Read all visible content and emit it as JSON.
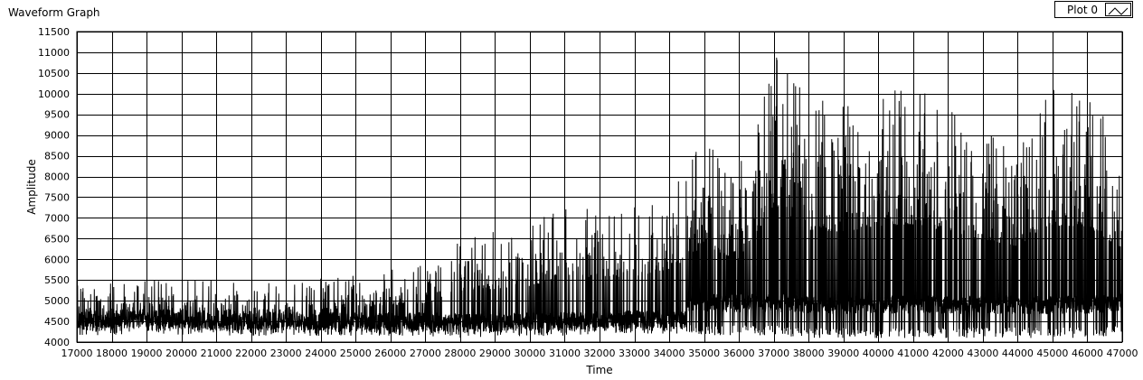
{
  "window": {
    "title": "Waveform Graph"
  },
  "legend": {
    "label": "Plot 0",
    "icon": "line-plot-icon"
  },
  "colors": {
    "background": "#ffffff",
    "grid": "#000000",
    "trace": "#000000"
  },
  "chart_data": {
    "type": "line",
    "title": "",
    "xlabel": "Time",
    "ylabel": "Amplitude",
    "xlim": [
      17000,
      47000
    ],
    "ylim": [
      4000,
      11500
    ],
    "x_ticks": [
      17000,
      18000,
      19000,
      20000,
      21000,
      22000,
      23000,
      24000,
      25000,
      26000,
      27000,
      28000,
      29000,
      30000,
      31000,
      32000,
      33000,
      34000,
      35000,
      36000,
      37000,
      38000,
      39000,
      40000,
      41000,
      42000,
      43000,
      44000,
      45000,
      46000,
      47000
    ],
    "y_ticks": [
      4000,
      4500,
      5000,
      5500,
      6000,
      6500,
      7000,
      7500,
      8000,
      8500,
      9000,
      9500,
      10000,
      10500,
      11000,
      11500
    ],
    "grid": true,
    "legend_position": "top-right",
    "series": [
      {
        "name": "Plot 0",
        "envelope": {
          "x": [
            17000,
            19000,
            21000,
            23000,
            25000,
            27000,
            28000,
            30000,
            31000,
            32000,
            33000,
            34000,
            35000,
            36000,
            37000,
            38000,
            39000,
            40000,
            41000,
            42000,
            43000,
            44000,
            45000,
            46000,
            47000
          ],
          "y_min": [
            4150,
            4200,
            4150,
            4150,
            4150,
            4150,
            4100,
            4150,
            4150,
            4200,
            4200,
            4200,
            4150,
            4150,
            4150,
            4100,
            4100,
            4100,
            4100,
            4100,
            4100,
            4100,
            4100,
            4100,
            4150
          ],
          "y_max": [
            5400,
            5500,
            5500,
            5400,
            5700,
            5900,
            6600,
            6800,
            7400,
            7200,
            7300,
            7600,
            9000,
            8200,
            11200,
            9900,
            9800,
            10100,
            10200,
            9800,
            9400,
            9000,
            10100,
            10100,
            8800
          ]
        }
      }
    ]
  }
}
